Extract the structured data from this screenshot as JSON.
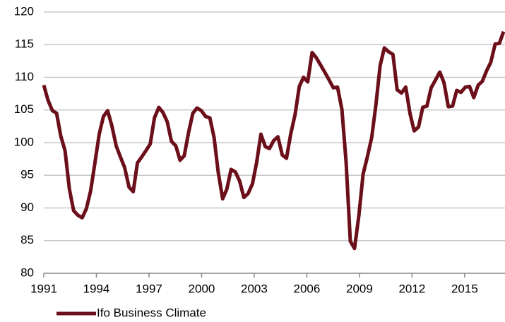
{
  "chart_data": {
    "type": "line",
    "x": [
      1991.0,
      1991.24,
      1991.49,
      1991.73,
      1991.97,
      1992.21,
      1992.46,
      1992.7,
      1992.94,
      1993.19,
      1993.43,
      1993.67,
      1993.91,
      1994.16,
      1994.4,
      1994.64,
      1994.88,
      1995.13,
      1995.37,
      1995.61,
      1995.86,
      1996.1,
      1996.34,
      1996.58,
      1996.83,
      1997.07,
      1997.31,
      1997.56,
      1997.8,
      1998.04,
      1998.28,
      1998.53,
      1998.77,
      1999.01,
      1999.26,
      1999.5,
      1999.74,
      1999.98,
      2000.23,
      2000.47,
      2000.71,
      2000.95,
      2001.2,
      2001.44,
      2001.68,
      2001.93,
      2002.17,
      2002.41,
      2002.65,
      2002.9,
      2003.14,
      2003.38,
      2003.63,
      2003.87,
      2004.11,
      2004.35,
      2004.6,
      2004.84,
      2005.08,
      2005.33,
      2005.57,
      2005.81,
      2006.05,
      2006.3,
      2006.54,
      2006.78,
      2007.02,
      2007.27,
      2007.51,
      2007.75,
      2008.0,
      2008.24,
      2008.48,
      2008.72,
      2008.97,
      2009.21,
      2009.45,
      2009.7,
      2009.94,
      2010.18,
      2010.42,
      2010.67,
      2010.91,
      2011.15,
      2011.4,
      2011.64,
      2011.88,
      2012.12,
      2012.37,
      2012.61,
      2012.85,
      2013.09,
      2013.34,
      2013.58,
      2013.82,
      2014.07,
      2014.31,
      2014.55,
      2014.79,
      2015.04,
      2015.28,
      2015.52,
      2015.77,
      2016.01,
      2016.25,
      2016.49,
      2016.74,
      2016.98,
      2017.22
    ],
    "series": [
      {
        "name": "Ifo Business Climate",
        "color": "#6b0f1a",
        "values": [
          108.8,
          106.5,
          104.9,
          104.5,
          101,
          98.8,
          92.9,
          89.6,
          88.9,
          88.5,
          89.9,
          92.6,
          96.8,
          101.3,
          104,
          104.9,
          102.6,
          99.5,
          97.8,
          96.2,
          93.2,
          92.5,
          96.9,
          97.8,
          98.8,
          99.8,
          103.8,
          105.4,
          104.6,
          103.2,
          100.2,
          99.5,
          97.3,
          98,
          101.6,
          104.5,
          105.3,
          104.9,
          104,
          103.8,
          100.8,
          95.4,
          91.4,
          92.9,
          95.9,
          95.5,
          94.1,
          91.6,
          92.2,
          93.7,
          97,
          101.3,
          99.4,
          99.1,
          100.3,
          100.9,
          98.1,
          97.6,
          101.3,
          104.3,
          108.6,
          110,
          109.3,
          113.8,
          113,
          111.9,
          110.8,
          109.6,
          108.4,
          108.5,
          105.1,
          97,
          84.9,
          83.8,
          88.9,
          95.2,
          97.8,
          100.8,
          105.8,
          111.8,
          114.5,
          113.9,
          113.5,
          108.1,
          107.6,
          108.5,
          104.5,
          101.8,
          102.4,
          105.4,
          105.6,
          108.4,
          109.6,
          110.8,
          109.2,
          105.5,
          105.6,
          108,
          107.7,
          108.5,
          108.6,
          106.9,
          108.8,
          109.4,
          111,
          112.3,
          115.1,
          115.2,
          117
        ]
      }
    ],
    "xlim": [
      1991,
      2017.22
    ],
    "ylim": [
      80,
      120
    ],
    "xticks": [
      1991,
      1994,
      1997,
      2000,
      2003,
      2006,
      2009,
      2012,
      2015
    ],
    "yticks": [
      80,
      85,
      90,
      95,
      100,
      105,
      110,
      115,
      120
    ],
    "grid": true
  }
}
